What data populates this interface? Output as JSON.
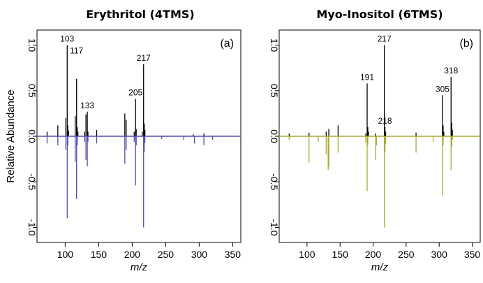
{
  "chart_data": [
    {
      "type": "mirror-spectrum",
      "title": "Erythritol (4TMS)",
      "panel_label": "(a)",
      "xlabel": "m/z",
      "ylabel": "Relative Abundance",
      "xlim": [
        60,
        360
      ],
      "ylim": [
        -1.15,
        1.15
      ],
      "xticks": [
        100,
        150,
        200,
        250,
        300,
        350
      ],
      "yticks": [
        1.0,
        0.5,
        0.0,
        -0.5,
        -1.0
      ],
      "ytick_labels": [
        "1.0",
        "0.5",
        "0.0",
        "-0.5",
        "-1.0"
      ],
      "series": [
        {
          "color": "#000000",
          "direction": "up",
          "peaks": [
            {
              "mz": 73,
              "y": 0.05
            },
            {
              "mz": 89,
              "y": 0.12
            },
            {
              "mz": 101,
              "y": 0.2
            },
            {
              "mz": 103,
              "y": 1.0
            },
            {
              "mz": 104,
              "y": 0.12
            },
            {
              "mz": 105,
              "y": 0.06
            },
            {
              "mz": 115,
              "y": 0.22
            },
            {
              "mz": 117,
              "y": 0.63
            },
            {
              "mz": 118,
              "y": 0.1
            },
            {
              "mz": 119,
              "y": 0.05
            },
            {
              "mz": 129,
              "y": 0.05
            },
            {
              "mz": 131,
              "y": 0.24
            },
            {
              "mz": 133,
              "y": 0.27
            },
            {
              "mz": 134,
              "y": 0.05
            },
            {
              "mz": 147,
              "y": 0.07
            },
            {
              "mz": 189,
              "y": 0.25
            },
            {
              "mz": 191,
              "y": 0.18
            },
            {
              "mz": 203,
              "y": 0.05
            },
            {
              "mz": 205,
              "y": 0.41
            },
            {
              "mz": 206,
              "y": 0.08
            },
            {
              "mz": 215,
              "y": 0.05
            },
            {
              "mz": 217,
              "y": 0.79
            },
            {
              "mz": 218,
              "y": 0.14
            },
            {
              "mz": 219,
              "y": 0.07
            },
            {
              "mz": 291,
              "y": 0.02
            },
            {
              "mz": 307,
              "y": 0.03
            }
          ]
        },
        {
          "color": "#4f4fab",
          "direction": "down",
          "peaks": [
            {
              "mz": 73,
              "y": 0.08
            },
            {
              "mz": 89,
              "y": 0.1
            },
            {
              "mz": 101,
              "y": 0.15
            },
            {
              "mz": 103,
              "y": 0.9
            },
            {
              "mz": 104,
              "y": 0.1
            },
            {
              "mz": 115,
              "y": 0.28
            },
            {
              "mz": 117,
              "y": 0.69
            },
            {
              "mz": 118,
              "y": 0.1
            },
            {
              "mz": 129,
              "y": 0.06
            },
            {
              "mz": 131,
              "y": 0.26
            },
            {
              "mz": 133,
              "y": 0.33
            },
            {
              "mz": 134,
              "y": 0.06
            },
            {
              "mz": 147,
              "y": 0.08
            },
            {
              "mz": 189,
              "y": 0.3
            },
            {
              "mz": 191,
              "y": 0.15
            },
            {
              "mz": 203,
              "y": 0.06
            },
            {
              "mz": 205,
              "y": 0.54
            },
            {
              "mz": 206,
              "y": 0.1
            },
            {
              "mz": 217,
              "y": 1.0
            },
            {
              "mz": 218,
              "y": 0.17
            },
            {
              "mz": 219,
              "y": 0.07
            },
            {
              "mz": 244,
              "y": 0.03
            },
            {
              "mz": 277,
              "y": 0.04
            },
            {
              "mz": 293,
              "y": 0.08
            },
            {
              "mz": 307,
              "y": 0.1
            },
            {
              "mz": 320,
              "y": 0.04
            }
          ]
        }
      ],
      "annotations": [
        {
          "text": "103",
          "mz": 103,
          "y": 1.0
        },
        {
          "text": "117",
          "mz": 117,
          "y": 0.87
        },
        {
          "text": "133",
          "mz": 133,
          "y": 0.27
        },
        {
          "text": "205",
          "mz": 205,
          "y": 0.41
        },
        {
          "text": "217",
          "mz": 217,
          "y": 0.79
        }
      ]
    },
    {
      "type": "mirror-spectrum",
      "title": "Myo-Inositol (6TMS)",
      "panel_label": "(b)",
      "xlabel": "m/z",
      "ylabel": "",
      "xlim": [
        60,
        360
      ],
      "ylim": [
        -1.15,
        1.15
      ],
      "xticks": [
        100,
        150,
        200,
        250,
        300,
        350
      ],
      "yticks": [
        1.0,
        0.5,
        0.0,
        -0.5,
        -1.0
      ],
      "ytick_labels": [
        "1.0",
        "0.5",
        "0.0",
        "-0.5",
        "-1.0"
      ],
      "series": [
        {
          "color": "#000000",
          "direction": "up",
          "peaks": [
            {
              "mz": 73,
              "y": 0.03
            },
            {
              "mz": 103,
              "y": 0.04
            },
            {
              "mz": 129,
              "y": 0.05
            },
            {
              "mz": 133,
              "y": 0.08
            },
            {
              "mz": 147,
              "y": 0.12
            },
            {
              "mz": 189,
              "y": 0.03
            },
            {
              "mz": 191,
              "y": 0.58
            },
            {
              "mz": 192,
              "y": 0.1
            },
            {
              "mz": 193,
              "y": 0.05
            },
            {
              "mz": 204,
              "y": 0.03
            },
            {
              "mz": 217,
              "y": 1.0
            },
            {
              "mz": 218,
              "y": 0.1
            },
            {
              "mz": 219,
              "y": 0.05
            },
            {
              "mz": 265,
              "y": 0.04
            },
            {
              "mz": 305,
              "y": 0.45
            },
            {
              "mz": 306,
              "y": 0.12
            },
            {
              "mz": 307,
              "y": 0.05
            },
            {
              "mz": 318,
              "y": 0.65
            },
            {
              "mz": 319,
              "y": 0.15
            },
            {
              "mz": 320,
              "y": 0.07
            }
          ]
        },
        {
          "color": "#a8a832",
          "direction": "down",
          "peaks": [
            {
              "mz": 73,
              "y": 0.04
            },
            {
              "mz": 103,
              "y": 0.29
            },
            {
              "mz": 117,
              "y": 0.06
            },
            {
              "mz": 129,
              "y": 0.2
            },
            {
              "mz": 132,
              "y": 0.37
            },
            {
              "mz": 133,
              "y": 0.34
            },
            {
              "mz": 147,
              "y": 0.18
            },
            {
              "mz": 189,
              "y": 0.07
            },
            {
              "mz": 191,
              "y": 0.6
            },
            {
              "mz": 192,
              "y": 0.1
            },
            {
              "mz": 204,
              "y": 0.26
            },
            {
              "mz": 205,
              "y": 0.1
            },
            {
              "mz": 217,
              "y": 1.0
            },
            {
              "mz": 218,
              "y": 0.17
            },
            {
              "mz": 219,
              "y": 0.08
            },
            {
              "mz": 265,
              "y": 0.18
            },
            {
              "mz": 291,
              "y": 0.06
            },
            {
              "mz": 305,
              "y": 0.65
            },
            {
              "mz": 306,
              "y": 0.1
            },
            {
              "mz": 318,
              "y": 0.37
            },
            {
              "mz": 319,
              "y": 0.12
            },
            {
              "mz": 320,
              "y": 0.04
            }
          ]
        }
      ],
      "annotations": [
        {
          "text": "191",
          "mz": 191,
          "y": 0.58
        },
        {
          "text": "217",
          "mz": 217,
          "y": 1.0
        },
        {
          "text": "218",
          "mz": 218,
          "y": 0.1
        },
        {
          "text": "305",
          "mz": 305,
          "y": 0.45
        },
        {
          "text": "318",
          "mz": 318,
          "y": 0.65
        }
      ]
    }
  ]
}
